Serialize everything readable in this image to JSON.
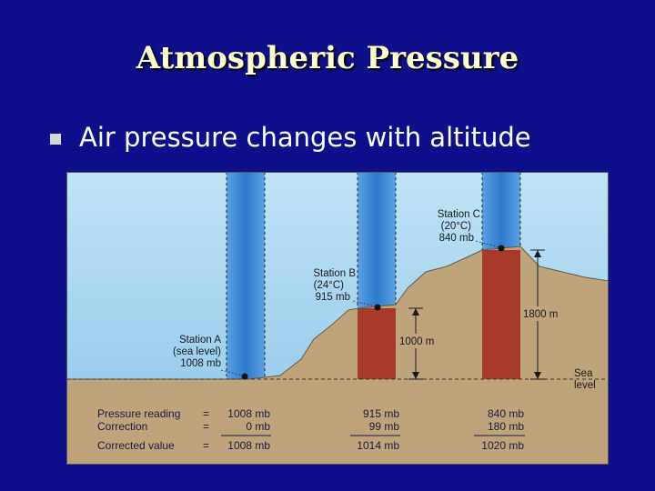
{
  "title": "Atmospheric Pressure",
  "bullet": "Air pressure changes with altitude",
  "diagram": {
    "stations": [
      {
        "name": "Station A",
        "detail": "(sea level)",
        "pressure": "1008 mb"
      },
      {
        "name": "Station B",
        "detail": "(24°C)",
        "pressure": "915 mb"
      },
      {
        "name": "Station C",
        "detail": "(20°C)",
        "pressure": "840 mb"
      }
    ],
    "heights": {
      "b": "1000 m",
      "c": "1800 m"
    },
    "sea_level": {
      "line1": "Sea",
      "line2": "level"
    },
    "table": {
      "row_labels": [
        "Pressure reading",
        "Correction",
        "Corrected value"
      ],
      "operators": [
        "=",
        "=",
        "="
      ],
      "station_a": [
        "1008 mb",
        "0 mb",
        "1008 mb"
      ],
      "station_b": [
        "915 mb",
        "99 mb",
        "1014 mb"
      ],
      "station_c": [
        "840 mb",
        "180 mb",
        "1020 mb"
      ]
    },
    "colors": {
      "sky_top": "#bfe3f5",
      "sky_bottom": "#8cc6ea",
      "air_column": "#3c86d6",
      "warm_column": "#a83a2a",
      "land": "#bda47a",
      "sea": "#3f88cc"
    }
  }
}
